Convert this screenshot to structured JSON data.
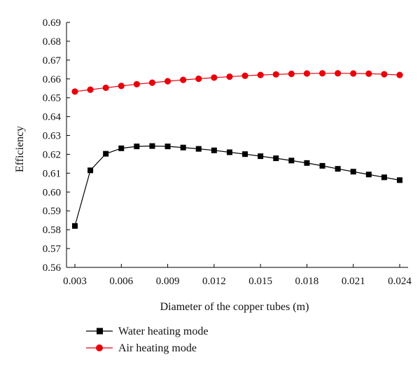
{
  "chart_data": {
    "type": "line",
    "xlabel": "Diameter of the copper tubes (m)",
    "ylabel": "Efficiency",
    "xlim": [
      0.003,
      0.024
    ],
    "ylim": [
      0.56,
      0.69
    ],
    "xticks": [
      "0.003",
      "0.006",
      "0.009",
      "0.012",
      "0.015",
      "0.018",
      "0.021",
      "0.024"
    ],
    "yticks": [
      "0.56",
      "0.57",
      "0.58",
      "0.59",
      "0.60",
      "0.61",
      "0.62",
      "0.63",
      "0.64",
      "0.65",
      "0.66",
      "0.67",
      "0.68",
      "0.69"
    ],
    "x": [
      0.003,
      0.004,
      0.005,
      0.006,
      0.007,
      0.008,
      0.009,
      0.01,
      0.011,
      0.012,
      0.013,
      0.014,
      0.015,
      0.016,
      0.017,
      0.018,
      0.019,
      0.02,
      0.021,
      0.022,
      0.023,
      0.024
    ],
    "legend_position": "bottom-left",
    "series": [
      {
        "name": "Water heating mode",
        "color": "#000000",
        "marker": "square",
        "values": [
          0.582,
          0.6115,
          0.6203,
          0.6232,
          0.6242,
          0.6244,
          0.6242,
          0.6236,
          0.6229,
          0.6221,
          0.6211,
          0.6201,
          0.619,
          0.6179,
          0.6167,
          0.6154,
          0.6139,
          0.6123,
          0.6108,
          0.6093,
          0.6078,
          0.6063
        ]
      },
      {
        "name": "Air heating mode",
        "color": "#e8000b",
        "marker": "circle",
        "values": [
          0.6533,
          0.6543,
          0.6553,
          0.6563,
          0.6572,
          0.658,
          0.6588,
          0.6595,
          0.6601,
          0.6607,
          0.6612,
          0.6617,
          0.6621,
          0.6624,
          0.6627,
          0.6629,
          0.663,
          0.663,
          0.6629,
          0.6628,
          0.6625,
          0.6621
        ]
      }
    ]
  }
}
